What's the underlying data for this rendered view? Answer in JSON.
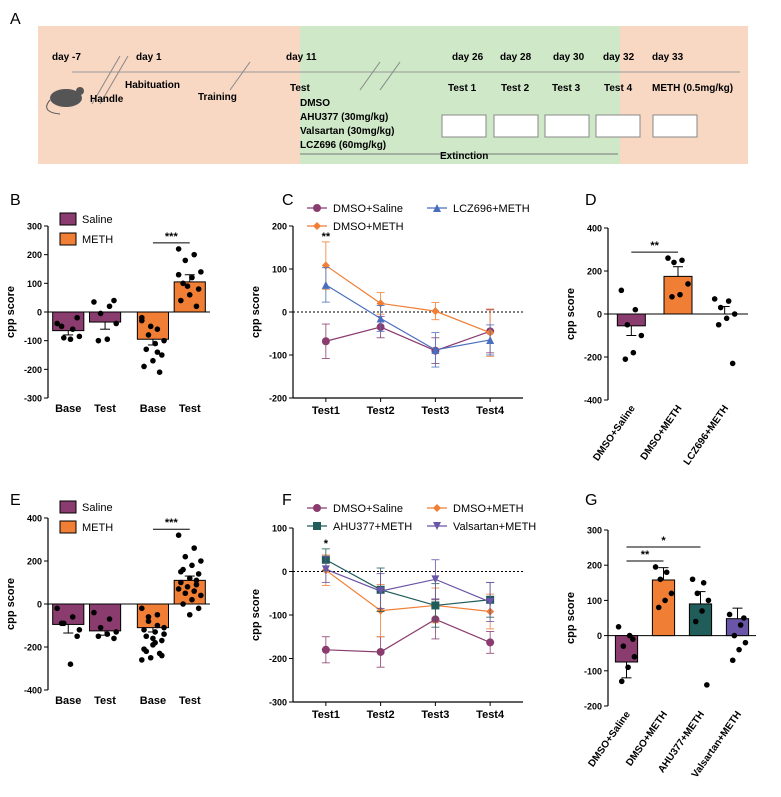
{
  "colors": {
    "saline": "#8a3c6e",
    "meth": "#f07e34",
    "lcz": "#4a6ebf",
    "ahu": "#1f5c5a",
    "valsartan": "#6a55a8",
    "timeline_peach": "#f8d7c3",
    "timeline_green": "#cfe8c8"
  },
  "timeline": {
    "panel": "A",
    "days": [
      "day -7",
      "day 1",
      "day 11",
      "day 26",
      "day 28",
      "day 30",
      "day 32",
      "day 33"
    ],
    "labels": {
      "handle": "Handle",
      "habituation": "Habituation",
      "training": "Training",
      "test": "Test",
      "test1": "Test 1",
      "test2": "Test 2",
      "test3": "Test 3",
      "test4": "Test 4",
      "meth": "METH (0.5mg/kg)",
      "extinction": "Extinction"
    },
    "treatments": [
      "DMSO",
      "AHU377 (30mg/kg)",
      "Valsartan (30mg/kg)",
      "LCZ696 (60mg/kg)"
    ]
  },
  "chart_data": [
    {
      "panel": "B",
      "type": "bar",
      "ylabel": "cpp score",
      "ylim": [
        -300,
        300
      ],
      "yticks": [
        -300,
        -200,
        -100,
        0,
        100,
        200,
        300
      ],
      "legend": [
        "Saline",
        "METH"
      ],
      "categories": [
        "Base",
        "Test",
        "Base",
        "Test"
      ],
      "groups": [
        "saline",
        "saline",
        "meth",
        "meth"
      ],
      "values": [
        -65,
        -35,
        -95,
        105
      ],
      "sem": [
        15,
        25,
        20,
        25
      ],
      "points": [
        [
          -40,
          -60,
          -90,
          -85,
          -95,
          -50,
          -20
        ],
        [
          35,
          20,
          -5,
          -40,
          -95,
          -100,
          40
        ],
        [
          -30,
          -60,
          -80,
          -100,
          -110,
          -130,
          -150,
          -170,
          -190,
          -210,
          -50,
          -20,
          -140
        ],
        [
          220,
          200,
          180,
          140,
          120,
          100,
          80,
          60,
          40,
          20,
          90,
          130
        ]
      ],
      "significance": [
        {
          "from": 2,
          "to": 3,
          "label": "***"
        }
      ]
    },
    {
      "panel": "C",
      "type": "line",
      "ylabel": "cpp score",
      "ylim": [
        -200,
        200
      ],
      "yticks": [
        -200,
        -100,
        0,
        100,
        200
      ],
      "categories": [
        "Test1",
        "Test2",
        "Test3",
        "Test4"
      ],
      "series": [
        {
          "name": "DMSO+Saline",
          "color_key": "saline",
          "marker": "circle",
          "values": [
            -68,
            -35,
            -90,
            -45
          ],
          "sem": [
            40,
            25,
            30,
            50
          ]
        },
        {
          "name": "DMSO+METH",
          "color_key": "meth",
          "marker": "diamond",
          "values": [
            108,
            20,
            2,
            -48
          ],
          "sem": [
            55,
            25,
            20,
            55
          ]
        },
        {
          "name": "LCZ696+METH",
          "color_key": "lcz",
          "marker": "triangle",
          "values": [
            63,
            -15,
            -88,
            -65
          ],
          "sem": [
            40,
            30,
            40,
            35
          ]
        }
      ],
      "significance": [
        {
          "at": 0,
          "label": "**"
        }
      ]
    },
    {
      "panel": "D",
      "type": "bar",
      "ylabel": "cpp score",
      "ylim": [
        -400,
        400
      ],
      "yticks": [
        -400,
        -200,
        0,
        200,
        400
      ],
      "categories": [
        "DMSO+Saline",
        "DMSO+METH",
        "LCZ696+METH"
      ],
      "groups": [
        "saline",
        "meth",
        "lcz"
      ],
      "values": [
        -55,
        175,
        0
      ],
      "sem": [
        45,
        45,
        35
      ],
      "points": [
        [
          110,
          20,
          -50,
          -100,
          -180,
          -210
        ],
        [
          260,
          250,
          240,
          140,
          90,
          80
        ],
        [
          70,
          60,
          30,
          0,
          -20,
          -50,
          -230
        ]
      ],
      "significance": [
        {
          "from": 0,
          "to": 1,
          "label": "**"
        }
      ]
    },
    {
      "panel": "E",
      "type": "bar",
      "ylabel": "cpp score",
      "ylim": [
        -400,
        400
      ],
      "yticks": [
        -400,
        -200,
        0,
        200,
        400
      ],
      "legend": [
        "Saline",
        "METH"
      ],
      "categories": [
        "Base",
        "Test",
        "Base",
        "Test"
      ],
      "groups": [
        "saline",
        "saline",
        "meth",
        "meth"
      ],
      "values": [
        -95,
        -125,
        -110,
        110
      ],
      "sem": [
        40,
        20,
        20,
        20
      ],
      "points": [
        [
          -20,
          -60,
          -90,
          -120,
          -280,
          -90,
          -150
        ],
        [
          -40,
          -70,
          -110,
          -130,
          -140,
          -150,
          -160
        ],
        [
          -20,
          -50,
          -80,
          -110,
          -130,
          -150,
          -170,
          -190,
          -210,
          -230,
          -250,
          -260,
          -100,
          -60,
          -140,
          -180,
          -220,
          -240,
          -160,
          -120
        ],
        [
          320,
          260,
          220,
          200,
          180,
          160,
          140,
          120,
          100,
          90,
          80,
          70,
          60,
          50,
          40,
          20,
          0,
          -20,
          -50,
          150,
          110
        ]
      ],
      "significance": [
        {
          "from": 2,
          "to": 3,
          "label": "***"
        }
      ]
    },
    {
      "panel": "F",
      "type": "line",
      "ylabel": "cpp score",
      "ylim": [
        -300,
        100
      ],
      "yticks": [
        -300,
        -200,
        -100,
        0,
        100
      ],
      "categories": [
        "Test1",
        "Test2",
        "Test3",
        "Test4"
      ],
      "series": [
        {
          "name": "DMSO+Saline",
          "color_key": "saline",
          "marker": "circle",
          "values": [
            -180,
            -185,
            -110,
            -163
          ],
          "sem": [
            30,
            35,
            45,
            25
          ]
        },
        {
          "name": "DMSO+METH",
          "color_key": "meth",
          "marker": "diamond",
          "values": [
            3,
            -90,
            -78,
            -92
          ],
          "sem": [
            35,
            60,
            40,
            40
          ]
        },
        {
          "name": "AHU377+METH",
          "color_key": "ahu",
          "marker": "square",
          "values": [
            27,
            -42,
            -78,
            -65
          ],
          "sem": [
            25,
            50,
            50,
            40
          ]
        },
        {
          "name": "Valsartan+METH",
          "color_key": "valsartan",
          "marker": "triangle-down",
          "values": [
            5,
            -45,
            -18,
            -70
          ],
          "sem": [
            30,
            40,
            45,
            45
          ]
        }
      ],
      "significance": [
        {
          "at": 0,
          "label": "*"
        }
      ]
    },
    {
      "panel": "G",
      "type": "bar",
      "ylabel": "cpp score",
      "ylim": [
        -200,
        300
      ],
      "yticks": [
        -200,
        -100,
        0,
        100,
        200,
        300
      ],
      "categories": [
        "DMSO+Saline",
        "DMSO+METH",
        "AHU377+METH",
        "Valsartan+METH"
      ],
      "groups": [
        "saline",
        "meth",
        "ahu",
        "valsartan"
      ],
      "values": [
        -75,
        158,
        90,
        48
      ],
      "sem": [
        45,
        35,
        35,
        30
      ],
      "points": [
        [
          25,
          0,
          -30,
          -60,
          -90,
          -130,
          -10
        ],
        [
          195,
          180,
          160,
          120,
          100,
          80
        ],
        [
          160,
          150,
          120,
          100,
          70,
          40,
          -140
        ],
        [
          60,
          30,
          0,
          -20,
          -40,
          -70,
          50
        ]
      ],
      "significance": [
        {
          "from": 0,
          "to": 1,
          "label": "**"
        },
        {
          "from": 0,
          "to": 2,
          "label": "*"
        }
      ]
    }
  ]
}
